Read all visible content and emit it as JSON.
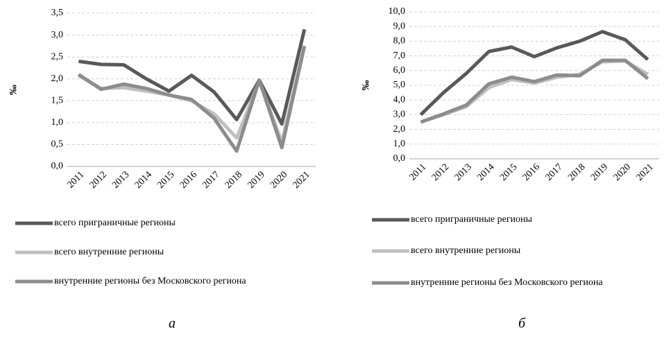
{
  "chart_data": [
    {
      "type": "line",
      "caption": "а",
      "y_label": "‰",
      "categories": [
        "2011",
        "2012",
        "2013",
        "2014",
        "2015",
        "2016",
        "2017",
        "2018",
        "2019",
        "2020",
        "2021"
      ],
      "ylim": [
        0,
        3.5
      ],
      "yticks": [
        {
          "value": 0,
          "label": "0,0"
        },
        {
          "value": 0.5,
          "label": "0,5"
        },
        {
          "value": 1,
          "label": "1,0"
        },
        {
          "value": 1.5,
          "label": "1,5"
        },
        {
          "value": 2,
          "label": "2,0"
        },
        {
          "value": 2.5,
          "label": "2,5"
        },
        {
          "value": 3,
          "label": "3,0"
        },
        {
          "value": 3.5,
          "label": "3,5"
        }
      ],
      "grid": true,
      "series": [
        {
          "name": "всего приграничные регионы",
          "color": "#595959",
          "values": [
            2.4,
            2.33,
            2.32,
            2.0,
            1.72,
            2.08,
            1.7,
            1.07,
            1.97,
            0.97,
            3.13
          ]
        },
        {
          "name": "всего внутренние регионы",
          "color": "#bfbfbf",
          "values": [
            2.08,
            1.78,
            1.8,
            1.72,
            1.63,
            1.5,
            1.2,
            0.65,
            1.95,
            0.55,
            2.75
          ]
        },
        {
          "name": "внутренние регионы без Московского региона",
          "color": "#8c8c8c",
          "values": [
            2.1,
            1.76,
            1.88,
            1.78,
            1.63,
            1.53,
            1.1,
            0.35,
            1.97,
            0.43,
            2.75
          ]
        }
      ]
    },
    {
      "type": "line",
      "caption": "б",
      "y_label": "‰",
      "categories": [
        "2011",
        "2012",
        "2013",
        "2014",
        "2015",
        "2016",
        "2017",
        "2018",
        "2019",
        "2020",
        "2021"
      ],
      "ylim": [
        0,
        10
      ],
      "yticks": [
        {
          "value": 0,
          "label": "0,0"
        },
        {
          "value": 1,
          "label": "1,0"
        },
        {
          "value": 2,
          "label": "2,0"
        },
        {
          "value": 3,
          "label": "3,0"
        },
        {
          "value": 4,
          "label": "4,0"
        },
        {
          "value": 5,
          "label": "5,0"
        },
        {
          "value": 6,
          "label": "6,0"
        },
        {
          "value": 7,
          "label": "7,0"
        },
        {
          "value": 8,
          "label": "8,0"
        },
        {
          "value": 9,
          "label": "9,0"
        },
        {
          "value": 10,
          "label": "10,0"
        }
      ],
      "grid": true,
      "series": [
        {
          "name": "всего приграничные регионы",
          "color": "#595959",
          "values": [
            3.0,
            4.5,
            5.8,
            7.3,
            7.6,
            6.95,
            7.55,
            8.0,
            8.65,
            8.1,
            6.75
          ]
        },
        {
          "name": "всего внутренние регионы",
          "color": "#bfbfbf",
          "values": [
            2.5,
            3.0,
            3.55,
            4.85,
            5.4,
            5.15,
            5.55,
            5.75,
            6.6,
            6.65,
            5.75
          ]
        },
        {
          "name": "внутренние регионы без Московского региона",
          "color": "#8c8c8c",
          "values": [
            2.5,
            3.05,
            3.65,
            5.1,
            5.55,
            5.25,
            5.7,
            5.65,
            6.7,
            6.7,
            5.45
          ]
        }
      ]
    }
  ]
}
